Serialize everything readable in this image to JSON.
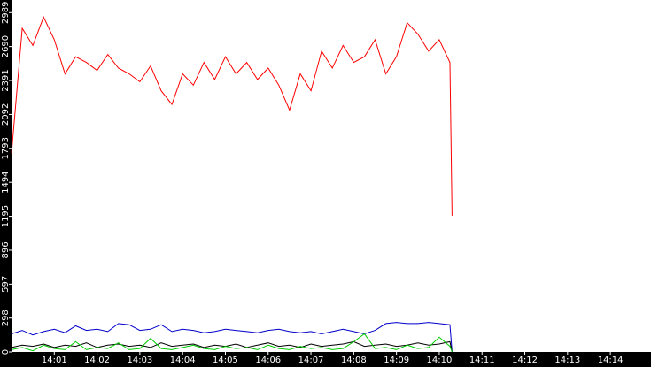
{
  "chart_data": {
    "type": "line",
    "x": [
      0,
      0.25,
      0.5,
      0.75,
      1,
      1.25,
      1.5,
      1.75,
      2,
      2.25,
      2.5,
      2.75,
      3,
      3.25,
      3.5,
      3.75,
      4,
      4.25,
      4.5,
      4.75,
      5,
      5.25,
      5.5,
      5.75,
      6,
      6.25,
      6.5,
      6.75,
      7,
      7.25,
      7.5,
      7.75,
      8,
      8.25,
      8.5,
      8.75,
      9,
      9.25,
      9.5,
      9.75,
      10,
      10.25,
      10.3
    ],
    "series": [
      {
        "name": "series-red",
        "color": "#ff0000",
        "values": [
          1750,
          2850,
          2700,
          2950,
          2750,
          2450,
          2600,
          2550,
          2480,
          2620,
          2500,
          2450,
          2380,
          2520,
          2300,
          2180,
          2450,
          2350,
          2550,
          2400,
          2600,
          2450,
          2550,
          2400,
          2500,
          2350,
          2130,
          2450,
          2300,
          2650,
          2500,
          2700,
          2550,
          2600,
          2750,
          2450,
          2600,
          2900,
          2800,
          2650,
          2750,
          2550,
          1200
        ]
      },
      {
        "name": "series-blue",
        "color": "#0000cc",
        "values": [
          160,
          190,
          150,
          180,
          200,
          170,
          230,
          190,
          200,
          180,
          250,
          240,
          190,
          200,
          240,
          180,
          200,
          190,
          170,
          180,
          200,
          190,
          180,
          170,
          190,
          200,
          180,
          170,
          180,
          160,
          180,
          200,
          180,
          160,
          190,
          250,
          260,
          250,
          250,
          260,
          250,
          240,
          0
        ]
      },
      {
        "name": "series-black",
        "color": "#000000",
        "values": [
          40,
          60,
          50,
          70,
          40,
          60,
          50,
          80,
          40,
          60,
          70,
          50,
          60,
          40,
          80,
          50,
          60,
          70,
          40,
          60,
          50,
          70,
          40,
          60,
          80,
          50,
          60,
          40,
          70,
          50,
          60,
          70,
          90,
          50,
          60,
          70,
          50,
          60,
          80,
          60,
          70,
          90,
          0
        ]
      },
      {
        "name": "series-green",
        "color": "#00cc00",
        "values": [
          20,
          40,
          10,
          60,
          30,
          20,
          90,
          20,
          40,
          30,
          80,
          20,
          30,
          120,
          30,
          20,
          40,
          60,
          30,
          20,
          50,
          30,
          40,
          20,
          60,
          30,
          20,
          50,
          30,
          40,
          20,
          30,
          90,
          160,
          30,
          40,
          20,
          60,
          30,
          40,
          130,
          50,
          0
        ]
      }
    ],
    "xlim": [
      0,
      14.95
    ],
    "ylim": [
      0,
      3100
    ],
    "yticks": [
      0,
      298,
      597,
      896,
      1195,
      1494,
      1793,
      2092,
      2391,
      2690,
      2989
    ],
    "xticks": [
      {
        "value": 1,
        "label": "14:01"
      },
      {
        "value": 2,
        "label": "14:02"
      },
      {
        "value": 3,
        "label": "14:03"
      },
      {
        "value": 4,
        "label": "14:04"
      },
      {
        "value": 5,
        "label": "14:05"
      },
      {
        "value": 6,
        "label": "14:06"
      },
      {
        "value": 7,
        "label": "14:07"
      },
      {
        "value": 8,
        "label": "14:08"
      },
      {
        "value": 9,
        "label": "14:09"
      },
      {
        "value": 10,
        "label": "14:10"
      },
      {
        "value": 11,
        "label": "14:11"
      },
      {
        "value": 12,
        "label": "14:12"
      },
      {
        "value": 13,
        "label": "14:13"
      },
      {
        "value": 14,
        "label": "14:14"
      }
    ]
  }
}
